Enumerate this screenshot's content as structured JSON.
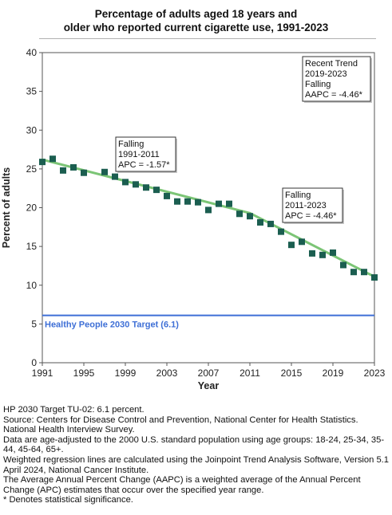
{
  "chart_data": {
    "type": "scatter",
    "title_lines": [
      "Percentage of adults aged 18 years and",
      "older who reported current cigarette use, 1991-2023"
    ],
    "xlabel": "Year",
    "ylabel": "Percent of adults",
    "xlim": [
      1991,
      2023
    ],
    "ylim": [
      0,
      40
    ],
    "x_ticks": [
      1991,
      1995,
      1999,
      2003,
      2007,
      2011,
      2015,
      2019,
      2023
    ],
    "y_ticks": [
      0,
      5,
      10,
      15,
      20,
      25,
      30,
      35,
      40
    ],
    "grid": false,
    "marker_color": "#1b5e50",
    "trend_color": "#7cc576",
    "target_color": "#3e6fd6",
    "points": [
      {
        "x": 1991,
        "y": 25.9
      },
      {
        "x": 1992,
        "y": 26.3
      },
      {
        "x": 1993,
        "y": 24.8
      },
      {
        "x": 1994,
        "y": 25.2
      },
      {
        "x": 1995,
        "y": 24.5
      },
      {
        "x": 1997,
        "y": 24.6
      },
      {
        "x": 1998,
        "y": 24.0
      },
      {
        "x": 1999,
        "y": 23.3
      },
      {
        "x": 2000,
        "y": 23.0
      },
      {
        "x": 2001,
        "y": 22.6
      },
      {
        "x": 2002,
        "y": 22.3
      },
      {
        "x": 2003,
        "y": 21.5
      },
      {
        "x": 2004,
        "y": 20.8
      },
      {
        "x": 2005,
        "y": 20.8
      },
      {
        "x": 2006,
        "y": 20.7
      },
      {
        "x": 2007,
        "y": 19.7
      },
      {
        "x": 2008,
        "y": 20.5
      },
      {
        "x": 2009,
        "y": 20.5
      },
      {
        "x": 2010,
        "y": 19.2
      },
      {
        "x": 2011,
        "y": 18.9
      },
      {
        "x": 2012,
        "y": 18.1
      },
      {
        "x": 2013,
        "y": 17.9
      },
      {
        "x": 2014,
        "y": 16.9
      },
      {
        "x": 2015,
        "y": 15.2
      },
      {
        "x": 2016,
        "y": 15.6
      },
      {
        "x": 2017,
        "y": 14.1
      },
      {
        "x": 2018,
        "y": 13.9
      },
      {
        "x": 2019,
        "y": 14.2
      },
      {
        "x": 2020,
        "y": 12.6
      },
      {
        "x": 2021,
        "y": 11.7
      },
      {
        "x": 2022,
        "y": 11.7
      },
      {
        "x": 2023,
        "y": 11.0
      }
    ],
    "trend_segments": [
      {
        "x": [
          1991,
          2011
        ],
        "y": [
          26.2,
          19.3
        ]
      },
      {
        "x": [
          2011,
          2023
        ],
        "y": [
          19.3,
          11.1
        ]
      }
    ],
    "target": {
      "value": 6.1,
      "label": "Healthy People 2030 Target (6.1)"
    },
    "annotations": [
      {
        "lines": [
          "Falling",
          "1991-2011",
          "APC = -1.57*"
        ]
      },
      {
        "lines": [
          "Falling",
          "2011-2023",
          "APC = -4.46*"
        ]
      },
      {
        "lines": [
          "Recent Trend",
          "2019-2023",
          "Falling",
          "AAPC = -4.46*"
        ]
      }
    ]
  },
  "footnotes": [
    "HP 2030 Target TU-02: 6.1 percent.",
    "Source: Centers for Disease Control and Prevention, National Center for Health Statistics. National Health Interview Survey.",
    "Data are age-adjusted to the 2000 U.S. standard population using age groups: 18-24, 25-34, 35-44, 45-64, 65+.",
    "Weighted regression lines are calculated using the Joinpoint Trend Analysis Software, Version 5.1 April 2024, National Cancer Institute.",
    "The Average Annual Percent Change (AAPC) is a weighted average of the Annual Percent Change (APC) estimates that occur over the specified year range.",
    "* Denotes statistical significance."
  ]
}
